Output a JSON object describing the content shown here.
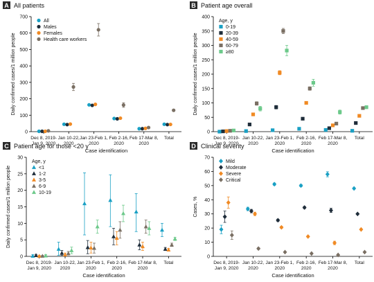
{
  "colors": {
    "panel_badge": "#2b2b2b",
    "axis": "#000000",
    "tick_text": "#111111"
  },
  "chart_data": [
    {
      "panel": "A",
      "type": "scatter",
      "title": "All patients",
      "xlabel": "Case identification",
      "ylabel": "Daily confirmed cases/1 million people",
      "ylim": [
        0,
        700
      ],
      "yticks": [
        0,
        100,
        200,
        300,
        400,
        500,
        600,
        700
      ],
      "categories": [
        [
          "Dec 8, 2019-",
          "Jan 9, 2020"
        ],
        [
          "Jan 10-22,",
          "2020"
        ],
        [
          "Jan 23-Feb 1,",
          "2020"
        ],
        [
          "Feb 2-16,",
          "2020"
        ],
        [
          "Feb 17-Mar 8,",
          "2020"
        ],
        [
          "Total"
        ]
      ],
      "legend": {
        "placement": "top-left"
      },
      "series": [
        {
          "name": "All",
          "color": "#1aa0c4",
          "marker": "circle",
          "values": [
            2,
            45,
            163,
            80,
            18,
            45
          ],
          "err": [
            0,
            3,
            4,
            3,
            1,
            1
          ]
        },
        {
          "name": "Males",
          "color": "#1f2d3a",
          "marker": "circle",
          "values": [
            2,
            43,
            160,
            78,
            18,
            43
          ],
          "err": [
            0,
            3,
            4,
            3,
            1,
            1
          ]
        },
        {
          "name": "Females",
          "color": "#f08a24",
          "marker": "circle",
          "values": [
            2,
            46,
            166,
            82,
            20,
            44
          ],
          "err": [
            0,
            3,
            4,
            3,
            1,
            1
          ]
        },
        {
          "name": "Health care workers",
          "color": "#7a6f63",
          "marker": "circle",
          "values": [
            5,
            272,
            620,
            162,
            25,
            130
          ],
          "err": [
            2,
            22,
            38,
            14,
            4,
            6
          ]
        }
      ]
    },
    {
      "panel": "B",
      "type": "scatter",
      "title": "Patient age overall",
      "xlabel": "Case identification",
      "ylabel": "Daily confirmed cases/1 million people",
      "ylim": [
        0,
        400
      ],
      "yticks": [
        0,
        50,
        100,
        150,
        200,
        250,
        300,
        350,
        400
      ],
      "categories": [
        [
          "Dec 8, 2019-",
          "Jan 9, 2020"
        ],
        [
          "Jan 10-22,",
          "2020"
        ],
        [
          "Jan 23-Feb 1,",
          "2020"
        ],
        [
          "Feb 2-16,",
          "2020"
        ],
        [
          "Feb 17-Mar 8,",
          "2020"
        ],
        [
          "Total"
        ]
      ],
      "legend": {
        "title": "Age, y",
        "placement": "top-left"
      },
      "series": [
        {
          "name": "0-19",
          "color": "#1aa0c4",
          "marker": "square",
          "values": [
            0,
            2,
            5,
            10,
            6,
            3
          ],
          "err": [
            0,
            1,
            1,
            1,
            1,
            1
          ]
        },
        {
          "name": "20-39",
          "color": "#1f2d3a",
          "marker": "square",
          "values": [
            1,
            25,
            85,
            45,
            12,
            30
          ],
          "err": [
            0,
            3,
            6,
            4,
            2,
            2
          ]
        },
        {
          "name": "40-59",
          "color": "#f08a24",
          "marker": "square",
          "values": [
            2,
            60,
            205,
            100,
            22,
            55
          ],
          "err": [
            1,
            4,
            7,
            5,
            2,
            2
          ]
        },
        {
          "name": "60-79",
          "color": "#7a6f63",
          "marker": "square",
          "values": [
            3,
            98,
            350,
            150,
            28,
            82
          ],
          "err": [
            1,
            6,
            9,
            6,
            3,
            3
          ]
        },
        {
          "name": "≥80",
          "color": "#6cc98a",
          "marker": "square",
          "values": [
            4,
            80,
            282,
            170,
            68,
            85
          ],
          "err": [
            2,
            8,
            18,
            12,
            7,
            5
          ]
        }
      ]
    },
    {
      "panel": "C",
      "type": "scatter",
      "title": "Patient age for those <20 y",
      "xlabel": "Case identification",
      "ylabel": "Daily confirmed cases/1 million people",
      "ylim": [
        0,
        30
      ],
      "yticks": [
        0,
        5,
        10,
        15,
        20,
        25,
        30
      ],
      "categories": [
        [
          "Dec 8, 2019-",
          "Jan 9, 2020"
        ],
        [
          "Jan 10-22,",
          "2020"
        ],
        [
          "Jan 23-Feb 1,",
          "2020"
        ],
        [
          "Feb 2-16,",
          "2020"
        ],
        [
          "Feb 17-Mar 8,",
          "2020"
        ],
        [
          "Total"
        ]
      ],
      "legend": {
        "title": "Age, y",
        "placement": "top-left"
      },
      "series": [
        {
          "name": "<1",
          "color": "#1aa0c4",
          "marker": "triangle",
          "values": [
            0.1,
            2.2,
            16.0,
            17.0,
            13.5,
            8.0
          ],
          "low": [
            0,
            0.3,
            6.5,
            9.0,
            7.5,
            6.0
          ],
          "high": [
            0.5,
            4.3,
            25.3,
            24.7,
            19.0,
            10.0
          ]
        },
        {
          "name": "1-2",
          "color": "#1f2d3a",
          "marker": "triangle",
          "values": [
            0.3,
            1.0,
            2.7,
            6.0,
            3.5,
            2.2
          ],
          "low": [
            0,
            0.3,
            0.8,
            3.5,
            2.0,
            1.8
          ],
          "high": [
            0.6,
            1.8,
            4.8,
            8.5,
            5.0,
            2.7
          ]
        },
        {
          "name": "3-5",
          "color": "#f08a24",
          "marker": "triangle",
          "values": [
            0.1,
            0.5,
            2.6,
            5.5,
            3.0,
            2.0
          ],
          "low": [
            0,
            0.1,
            1.0,
            3.5,
            1.8,
            1.6
          ],
          "high": [
            0.3,
            1.0,
            4.3,
            7.5,
            4.3,
            2.4
          ]
        },
        {
          "name": "6-9",
          "color": "#7a6f63",
          "marker": "triangle",
          "values": [
            0.1,
            0.9,
            2.5,
            8.0,
            9.0,
            3.5
          ],
          "low": [
            0,
            0.4,
            1.0,
            5.5,
            7.0,
            3.0
          ],
          "high": [
            0.3,
            1.5,
            4.0,
            10.5,
            11.0,
            4.0
          ]
        },
        {
          "name": "10-19",
          "color": "#6cc98a",
          "marker": "triangle",
          "values": [
            0.2,
            1.8,
            9.0,
            13.0,
            8.5,
            5.3
          ],
          "low": [
            0,
            0.8,
            7.0,
            10.5,
            6.5,
            4.8
          ],
          "high": [
            0.5,
            2.8,
            11.0,
            15.5,
            10.5,
            5.8
          ]
        }
      ]
    },
    {
      "panel": "D",
      "type": "scatter",
      "title": "Clinical severity",
      "xlabel": "Case identification",
      "ylabel": "Cases, %",
      "ylim": [
        0,
        70
      ],
      "yticks": [
        0,
        10,
        20,
        30,
        40,
        50,
        60,
        70
      ],
      "categories": [
        [
          "Dec 8, 2019-",
          "Jan 9, 2020"
        ],
        [
          "Jan 10-22,",
          "2020"
        ],
        [
          "Jan 23-Feb 1,",
          "2020"
        ],
        [
          "Feb 2-16,",
          "2020"
        ],
        [
          "Feb 17-Mar 8,",
          "2020"
        ],
        [
          "Total"
        ]
      ],
      "legend": {
        "placement": "top-left"
      },
      "series": [
        {
          "name": "Mild",
          "color": "#1aa0c4",
          "marker": "diamond",
          "values": [
            19,
            33.5,
            51,
            50,
            58,
            48
          ],
          "err": [
            3,
            1.2,
            0.8,
            0.8,
            1.8,
            0.4
          ]
        },
        {
          "name": "Moderate",
          "color": "#1f2d3a",
          "marker": "diamond",
          "values": [
            28,
            32,
            25.5,
            34.5,
            32.5,
            30
          ],
          "err": [
            4,
            1.2,
            0.8,
            0.8,
            1.5,
            0.4
          ]
        },
        {
          "name": "Severe",
          "color": "#f08a24",
          "marker": "diamond",
          "values": [
            38,
            30,
            20.5,
            14,
            9.5,
            19
          ],
          "err": [
            4,
            1.2,
            0.7,
            0.5,
            1.2,
            0.4
          ]
        },
        {
          "name": "Critical",
          "color": "#7a6f63",
          "marker": "diamond",
          "values": [
            15,
            5.5,
            3,
            2,
            1,
            3
          ],
          "err": [
            3,
            0.6,
            0.3,
            0.2,
            0.3,
            0.2
          ]
        }
      ]
    }
  ]
}
